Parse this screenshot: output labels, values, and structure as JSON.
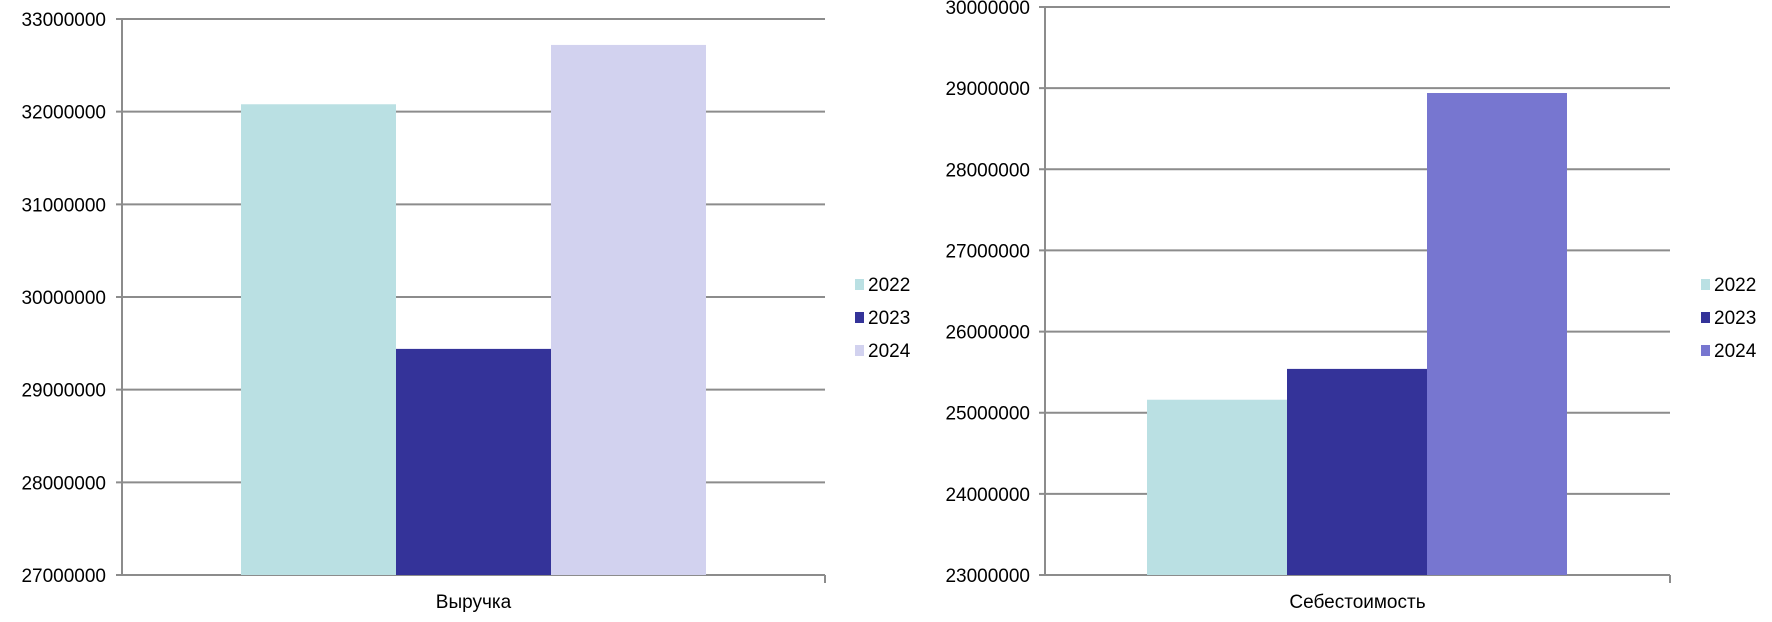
{
  "chart_data": [
    {
      "type": "bar",
      "categories": [
        "Выручка"
      ],
      "series": [
        {
          "name": "2022",
          "values": [
            32080000
          ],
          "color": "#bae0e3"
        },
        {
          "name": "2023",
          "values": [
            29440000
          ],
          "color": "#343399"
        },
        {
          "name": "2024",
          "values": [
            32720000
          ],
          "color": "#d2d2ef"
        }
      ],
      "ylim": [
        27000000,
        33000000
      ],
      "yticks": [
        "27000000",
        "28000000",
        "29000000",
        "30000000",
        "31000000",
        "32000000",
        "33000000"
      ],
      "grid": true,
      "legend": "right"
    },
    {
      "type": "bar",
      "categories": [
        "Себестоимость"
      ],
      "series": [
        {
          "name": "2022",
          "values": [
            25160000
          ],
          "color": "#bae0e3"
        },
        {
          "name": "2023",
          "values": [
            25540000
          ],
          "color": "#343399"
        },
        {
          "name": "2024",
          "values": [
            28940000
          ],
          "color": "#7776d0"
        }
      ],
      "ylim": [
        23000000,
        30000000
      ],
      "yticks": [
        "23000000",
        "24000000",
        "25000000",
        "26000000",
        "27000000",
        "28000000",
        "29000000",
        "30000000"
      ],
      "grid": true,
      "legend": "right"
    }
  ]
}
